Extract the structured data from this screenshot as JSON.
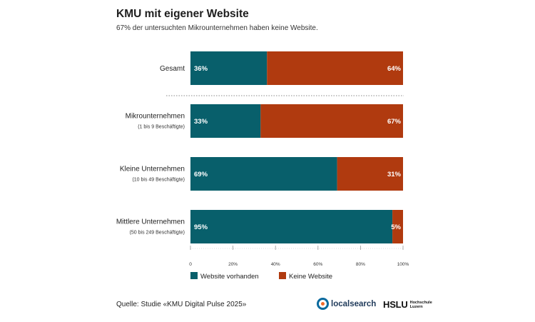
{
  "title": "KMU mit eigener Website",
  "subtitle": "67% der untersuchten Mikrounternehmen haben keine Website.",
  "colors": {
    "website": "#085f6b",
    "no_website": "#b03a0f",
    "divider": "#888888"
  },
  "chart_data": {
    "type": "bar",
    "orientation": "horizontal",
    "stacked": true,
    "categories": [
      {
        "label": "Gesamt",
        "sublabel": ""
      },
      {
        "label": "Mikrounternehmen",
        "sublabel": "(1 bis 9 Beschäftigte)"
      },
      {
        "label": "Kleine Unternehmen",
        "sublabel": "(10 bis 49 Beschäftigte)"
      },
      {
        "label": "Mittlere Unternehmen",
        "sublabel": "(50 bis 249 Beschäftigte)"
      }
    ],
    "series": [
      {
        "name": "Website vorhanden",
        "values": [
          36,
          33,
          69,
          95
        ],
        "labels": [
          "36%",
          "33%",
          "69%",
          "95%"
        ]
      },
      {
        "name": "Keine Website",
        "values": [
          64,
          67,
          31,
          5
        ],
        "labels": [
          "64%",
          "67%",
          "31%",
          "5%"
        ]
      }
    ],
    "xlim": [
      0,
      100
    ],
    "xticks": [
      "0",
      "20%",
      "40%",
      "60%",
      "80%",
      "100%"
    ],
    "grid": false,
    "legend": "bottom"
  },
  "footer": {
    "source": "Quelle: Studie «KMU Digital Pulse 2025»",
    "logo1": "localsearch",
    "logo2_main": "HSLU",
    "logo2_sub1": "Hochschule",
    "logo2_sub2": "Luzern"
  }
}
